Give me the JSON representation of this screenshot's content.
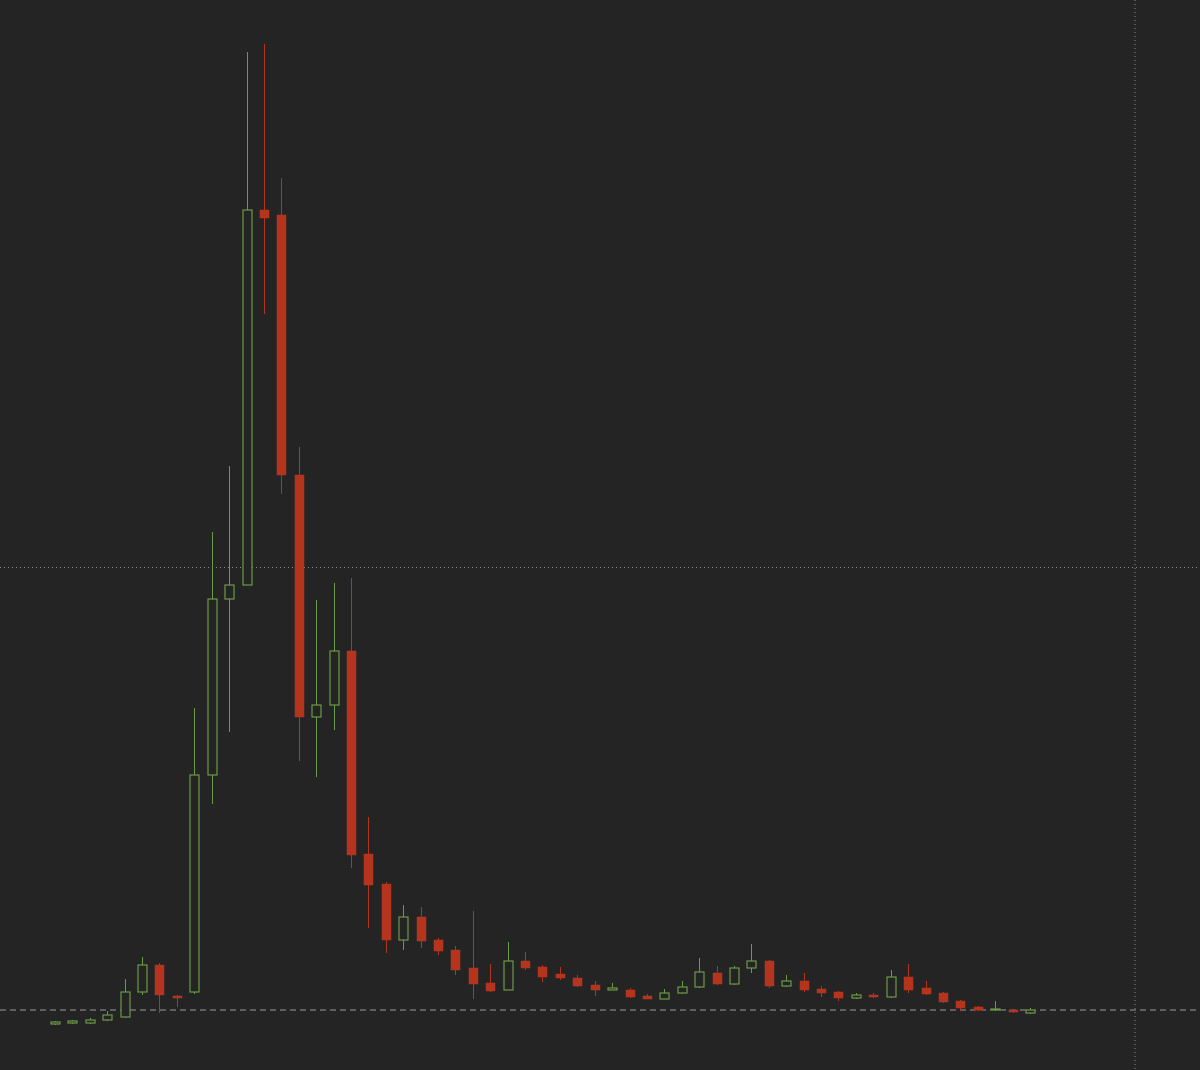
{
  "chart_data": {
    "type": "candlestick",
    "up_color": "#6b9a45",
    "down_color": "#b5341e",
    "ylim": [
      -6,
      101
    ],
    "reference_line": 0,
    "open": [
      -1.4,
      -1.3,
      -1.3,
      -1.0,
      -0.7,
      1.8,
      4.5,
      1.4,
      1.8,
      23.5,
      41.1,
      42.5,
      80.0,
      79.5,
      53.5,
      29.3,
      30.5,
      35.9,
      15.6,
      12.6,
      7.0,
      9.3,
      7.0,
      6.0,
      4.2,
      2.7,
      2.0,
      4.9,
      4.3,
      3.6,
      3.2,
      2.5,
      2.0,
      2.0,
      1.4,
      1.1,
      1.7,
      2.3,
      3.7,
      2.6,
      4.2,
      4.9,
      2.4,
      2.9,
      2.1,
      1.8,
      1.2,
      1.5,
      1.3,
      3.3,
      2.2,
      1.7,
      0.9,
      0.3,
      0.0,
      0.0,
      -0.3
    ],
    "high": [
      -1.1,
      -1.0,
      -0.8,
      -0.1,
      3.1,
      5.3,
      4.7,
      1.5,
      30.2,
      47.8,
      54.4,
      95.8,
      96.6,
      83.2,
      56.3,
      41.0,
      42.7,
      43.2,
      19.3,
      12.8,
      10.5,
      10.3,
      7.2,
      6.4,
      9.9,
      4.6,
      6.8,
      5.8,
      4.5,
      4.3,
      3.5,
      2.9,
      2.7,
      2.2,
      1.6,
      2.1,
      2.9,
      5.2,
      4.4,
      4.4,
      6.6,
      5.0,
      3.5,
      3.7,
      2.4,
      1.9,
      1.7,
      1.7,
      4.0,
      4.6,
      2.9,
      1.8,
      1.0,
      0.4,
      0.9,
      0.1,
      0.2
    ],
    "low": [
      -1.5,
      -1.4,
      -1.4,
      -1.1,
      -0.8,
      1.5,
      -0.3,
      0.3,
      1.6,
      20.6,
      27.8,
      42.5,
      69.6,
      51.6,
      24.9,
      23.3,
      28.0,
      14.2,
      8.2,
      5.7,
      6.0,
      6.2,
      5.5,
      3.5,
      1.1,
      1.8,
      2.0,
      4.0,
      2.8,
      3.0,
      2.3,
      1.4,
      2.0,
      1.2,
      1.1,
      1.1,
      1.6,
      2.2,
      2.5,
      2.5,
      3.7,
      2.2,
      2.3,
      1.8,
      1.3,
      0.9,
      1.1,
      1.2,
      1.2,
      1.7,
      1.5,
      0.7,
      0.0,
      -0.1,
      -0.1,
      -0.3,
      -0.4
    ],
    "close": [
      -1.2,
      -1.1,
      -1.0,
      -0.5,
      1.8,
      4.5,
      1.5,
      1.2,
      23.5,
      41.1,
      42.5,
      80.0,
      79.2,
      53.5,
      29.3,
      30.5,
      35.9,
      15.5,
      12.5,
      7.0,
      9.3,
      6.9,
      5.9,
      4.0,
      2.6,
      1.9,
      4.9,
      4.2,
      3.3,
      3.2,
      2.4,
      2.0,
      2.2,
      1.3,
      1.1,
      1.7,
      2.3,
      3.8,
      2.6,
      4.2,
      4.9,
      2.4,
      2.9,
      2.0,
      1.7,
      1.2,
      1.5,
      1.3,
      3.3,
      2.0,
      1.6,
      0.8,
      0.2,
      0.0,
      0.1,
      -0.2,
      0.0
    ]
  }
}
